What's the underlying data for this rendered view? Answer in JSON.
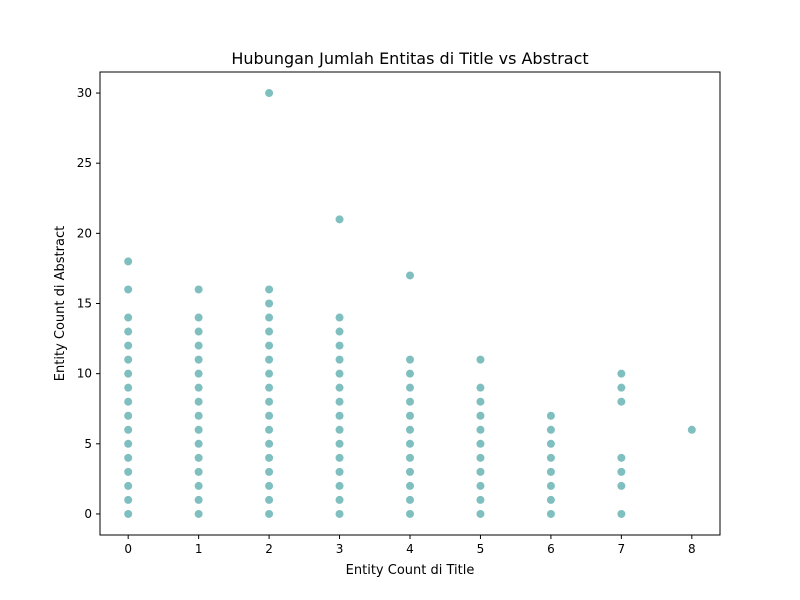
{
  "chart_data": {
    "type": "scatter",
    "title": "Hubungan Jumlah Entitas di Title vs Abstract",
    "xlabel": "Entity Count di Title",
    "ylabel": "Entity Count di Abstract",
    "xlim": [
      -0.4,
      8.4
    ],
    "ylim": [
      -1.5,
      31.5
    ],
    "xticks": [
      0,
      1,
      2,
      3,
      4,
      5,
      6,
      7,
      8
    ],
    "yticks": [
      0,
      5,
      10,
      15,
      20,
      25,
      30
    ],
    "grid": false,
    "color": "#008080",
    "point_alpha": 0.5,
    "points": [
      {
        "x": 0,
        "y": [
          0,
          1,
          2,
          3,
          4,
          5,
          6,
          7,
          8,
          9,
          10,
          11,
          12,
          13,
          14,
          16,
          18
        ]
      },
      {
        "x": 1,
        "y": [
          0,
          1,
          2,
          3,
          4,
          5,
          6,
          7,
          8,
          9,
          10,
          11,
          12,
          13,
          14,
          16
        ]
      },
      {
        "x": 2,
        "y": [
          0,
          1,
          2,
          3,
          4,
          5,
          6,
          7,
          8,
          9,
          10,
          11,
          12,
          13,
          14,
          15,
          16,
          30
        ]
      },
      {
        "x": 3,
        "y": [
          0,
          1,
          2,
          3,
          4,
          5,
          6,
          7,
          8,
          9,
          10,
          11,
          12,
          13,
          14,
          21
        ]
      },
      {
        "x": 4,
        "y": [
          0,
          1,
          2,
          3,
          4,
          5,
          6,
          7,
          8,
          9,
          10,
          11,
          17
        ]
      },
      {
        "x": 5,
        "y": [
          0,
          1,
          2,
          3,
          4,
          5,
          6,
          7,
          8,
          9,
          11
        ]
      },
      {
        "x": 6,
        "y": [
          0,
          1,
          2,
          3,
          4,
          5,
          6,
          7
        ]
      },
      {
        "x": 7,
        "y": [
          0,
          2,
          3,
          4,
          8,
          9,
          10
        ]
      },
      {
        "x": 8,
        "y": [
          6
        ]
      }
    ]
  }
}
